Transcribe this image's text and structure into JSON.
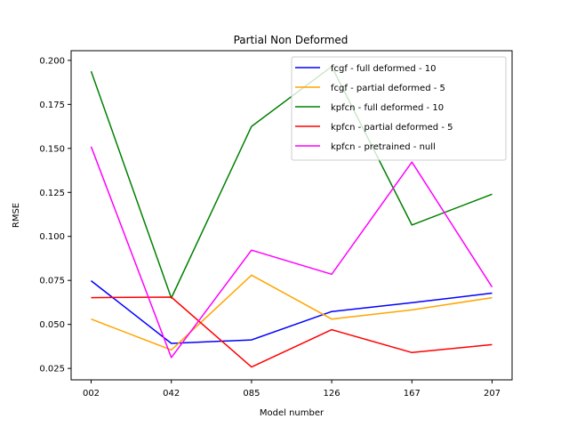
{
  "chart_data": {
    "type": "line",
    "title": "Partial Non Deformed",
    "xlabel": "Model number",
    "ylabel": "RMSE",
    "categories": [
      "002",
      "042",
      "085",
      "126",
      "167",
      "207"
    ],
    "ylim": [
      0.0185,
      0.2055
    ],
    "yticks": [
      "0.025",
      "0.050",
      "0.075",
      "0.100",
      "0.125",
      "0.150",
      "0.175",
      "0.200"
    ],
    "grid": false,
    "legend_position": "top-right",
    "series": [
      {
        "name": "fcgf - full deformed - 10",
        "color": "#0000ff",
        "values": [
          0.0748,
          0.0392,
          0.0412,
          0.0573,
          0.0623,
          0.0678
        ]
      },
      {
        "name": "fcgf - partial deformed - 5",
        "color": "#ffa500",
        "values": [
          0.053,
          0.0355,
          0.078,
          0.053,
          0.0582,
          0.0652
        ]
      },
      {
        "name": "kpfcn - full deformed - 10",
        "color": "#008000",
        "values": [
          0.1938,
          0.065,
          0.1625,
          0.1965,
          0.1065,
          0.124
        ]
      },
      {
        "name": "kpfcn - partial deformed - 5",
        "color": "#ff0000",
        "values": [
          0.0652,
          0.0655,
          0.0258,
          0.047,
          0.034,
          0.0385
        ]
      },
      {
        "name": "kpfcn - pretrained - null",
        "color": "#ff00ff",
        "values": [
          0.151,
          0.0312,
          0.0922,
          0.0785,
          0.1422,
          0.0712
        ]
      }
    ]
  }
}
